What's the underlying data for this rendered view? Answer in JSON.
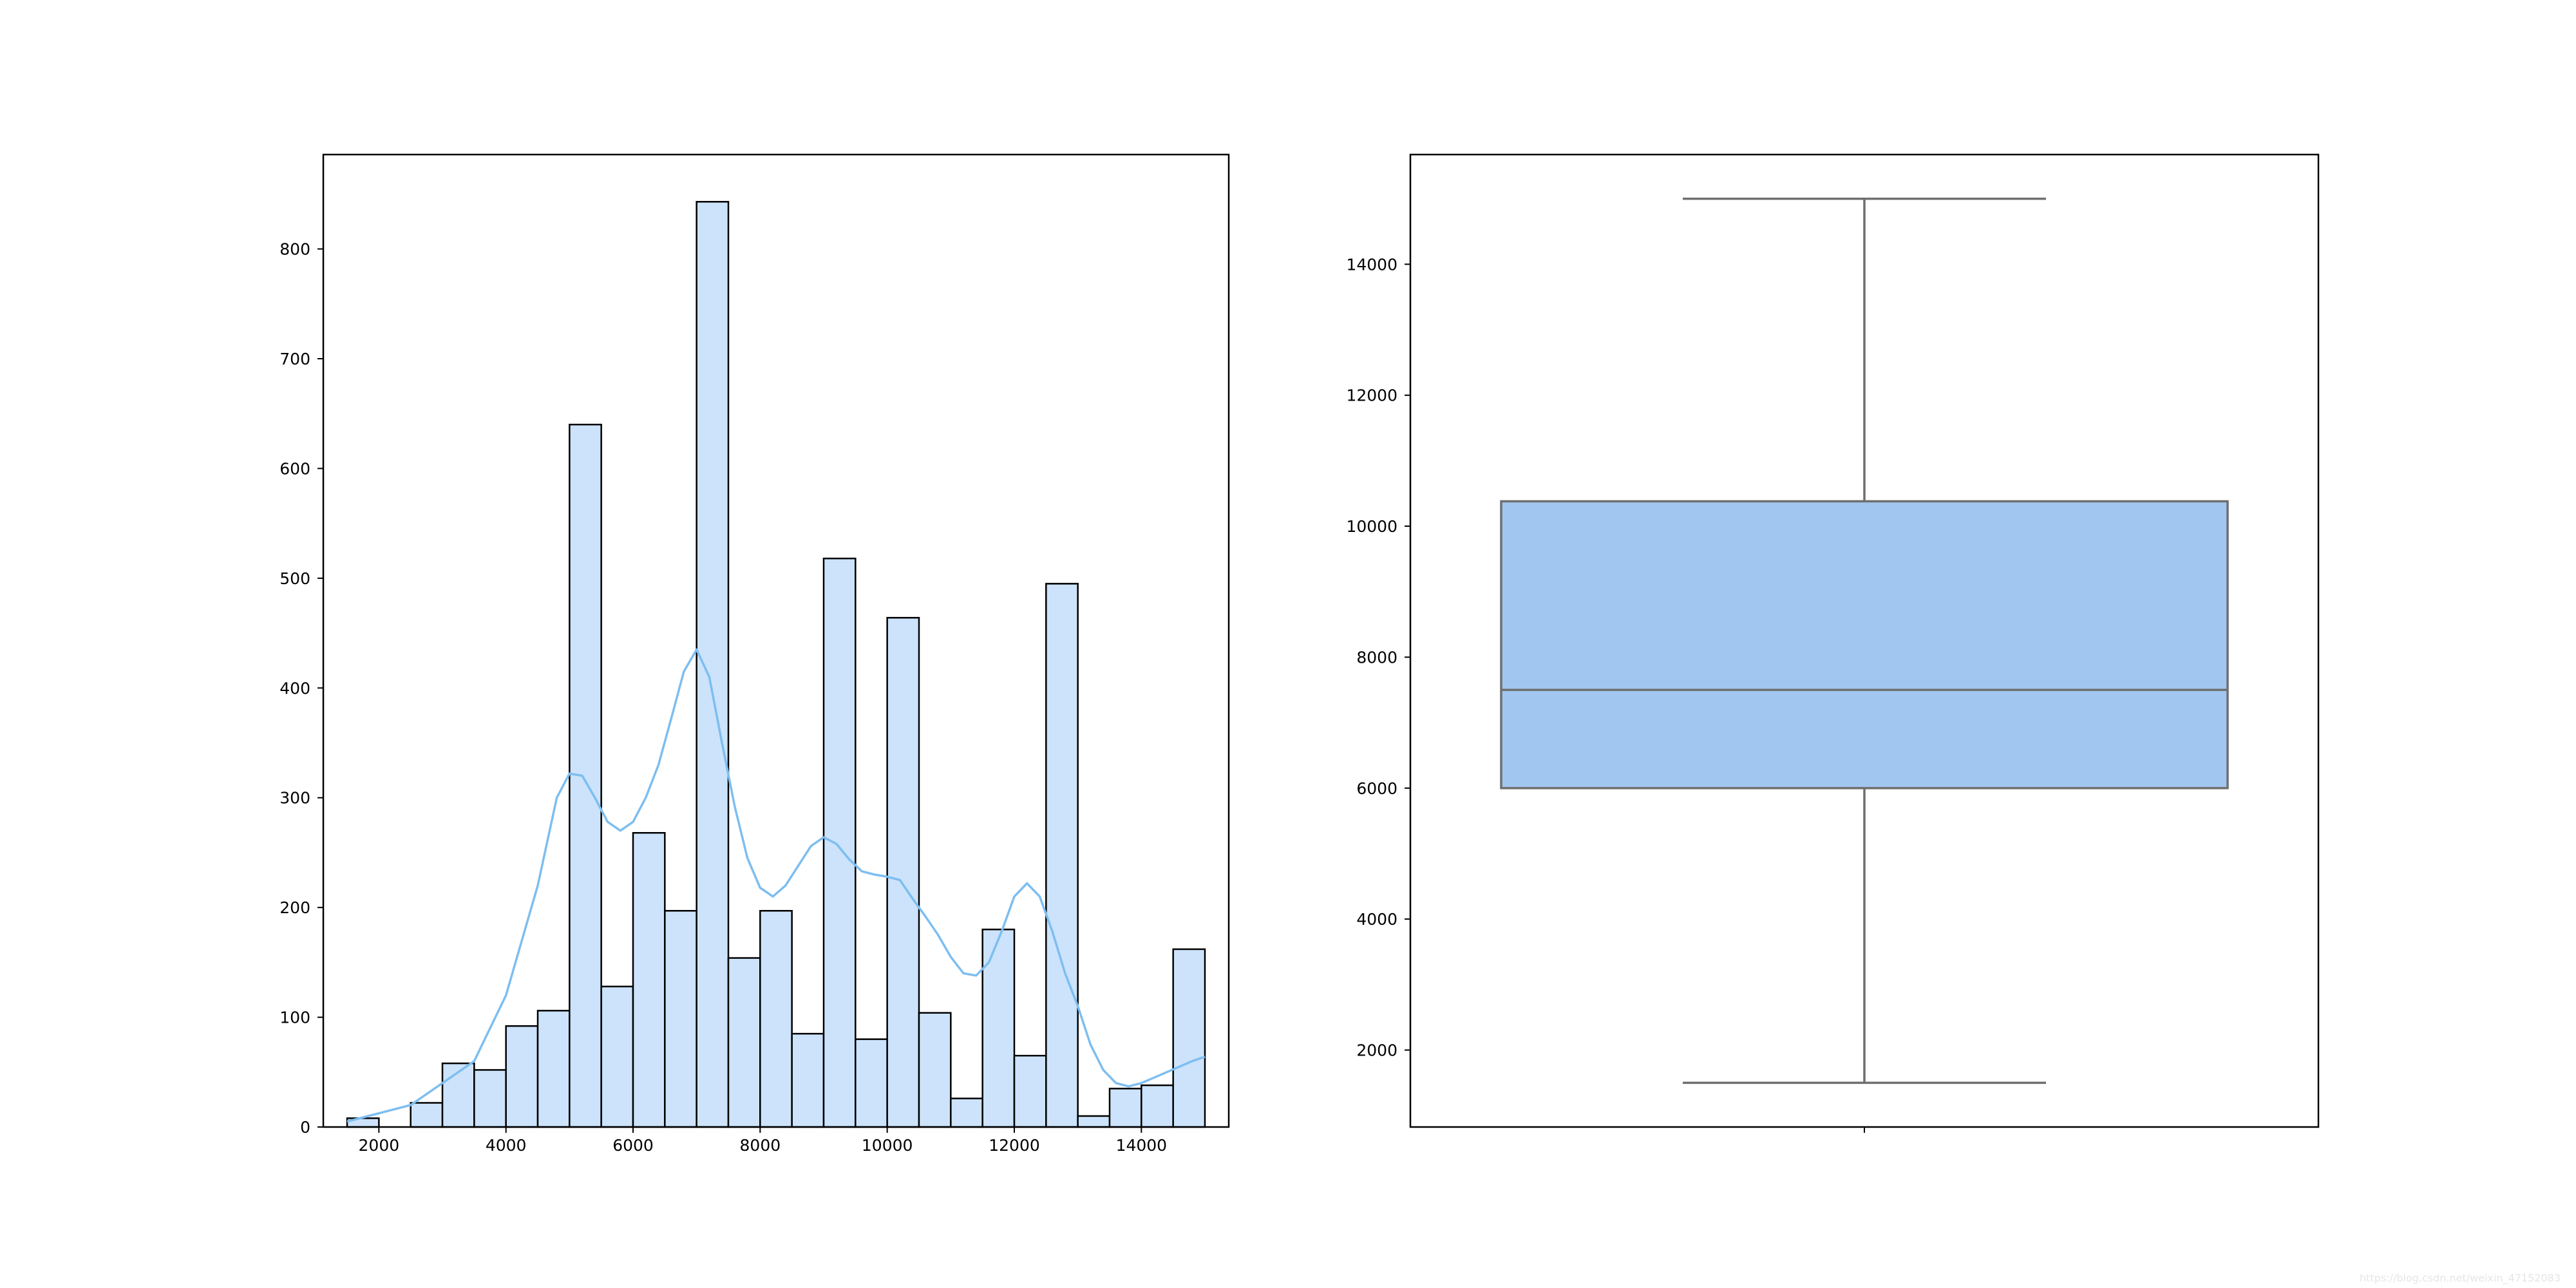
{
  "colors": {
    "hist_fill": "#cce3fb",
    "hist_edge": "#000000",
    "kde_line": "#7dbef0",
    "box_fill": "#a1c6f0",
    "box_line": "#6f6f6f",
    "axes": "#000000"
  },
  "chart_data": [
    {
      "type": "bar",
      "subtype": "histogram-with-kde",
      "bin_edges": [
        1500,
        2000,
        2500,
        3000,
        3500,
        4000,
        4500,
        5000,
        5500,
        6000,
        6500,
        7000,
        7500,
        8000,
        8500,
        9000,
        9500,
        10000,
        10500,
        11000,
        11500,
        12000,
        12500,
        13000,
        13500,
        14000,
        14500,
        15000
      ],
      "values": [
        8,
        0,
        22,
        58,
        52,
        92,
        106,
        640,
        128,
        268,
        197,
        843,
        154,
        197,
        85,
        518,
        80,
        464,
        104,
        26,
        180,
        65,
        495,
        10,
        35,
        38,
        162
      ],
      "kde": {
        "x": [
          1500,
          2500,
          3500,
          4000,
          4500,
          4800,
          5000,
          5200,
          5400,
          5600,
          5800,
          6000,
          6200,
          6400,
          6600,
          6800,
          7000,
          7200,
          7400,
          7600,
          7800,
          8000,
          8200,
          8400,
          8600,
          8800,
          9000,
          9200,
          9400,
          9600,
          9800,
          10000,
          10200,
          10400,
          10600,
          10800,
          11000,
          11200,
          11400,
          11600,
          11800,
          12000,
          12200,
          12400,
          12600,
          12800,
          13000,
          13200,
          13400,
          13600,
          13800,
          14000,
          14200,
          14400,
          14600,
          14800,
          15000
        ],
        "y": [
          5,
          20,
          60,
          120,
          220,
          300,
          322,
          320,
          300,
          278,
          270,
          278,
          300,
          330,
          372,
          415,
          435,
          410,
          350,
          292,
          245,
          218,
          210,
          220,
          238,
          256,
          264,
          258,
          244,
          233,
          230,
          228,
          225,
          208,
          192,
          175,
          155,
          140,
          138,
          150,
          178,
          210,
          222,
          210,
          178,
          140,
          110,
          75,
          52,
          40,
          37,
          40,
          45,
          50,
          55,
          60,
          64
        ]
      },
      "xlim": [
        1125,
        15375
      ],
      "ylim": [
        0,
        886
      ],
      "xticks": [
        2000,
        4000,
        6000,
        8000,
        10000,
        12000,
        14000
      ],
      "yticks": [
        0,
        100,
        200,
        300,
        400,
        500,
        600,
        700,
        800
      ],
      "title": "",
      "xlabel": "",
      "ylabel": ""
    },
    {
      "type": "box",
      "whisker_low": 1500,
      "q1": 6000,
      "median": 7500,
      "q3": 10380,
      "whisker_high": 15000,
      "ylim": [
        825,
        15675
      ],
      "yticks": [
        2000,
        4000,
        6000,
        8000,
        10000,
        12000,
        14000
      ],
      "title": "",
      "xlabel": "",
      "ylabel": ""
    }
  ],
  "watermark": "https://blog.csdn.net/weixin_47152083"
}
